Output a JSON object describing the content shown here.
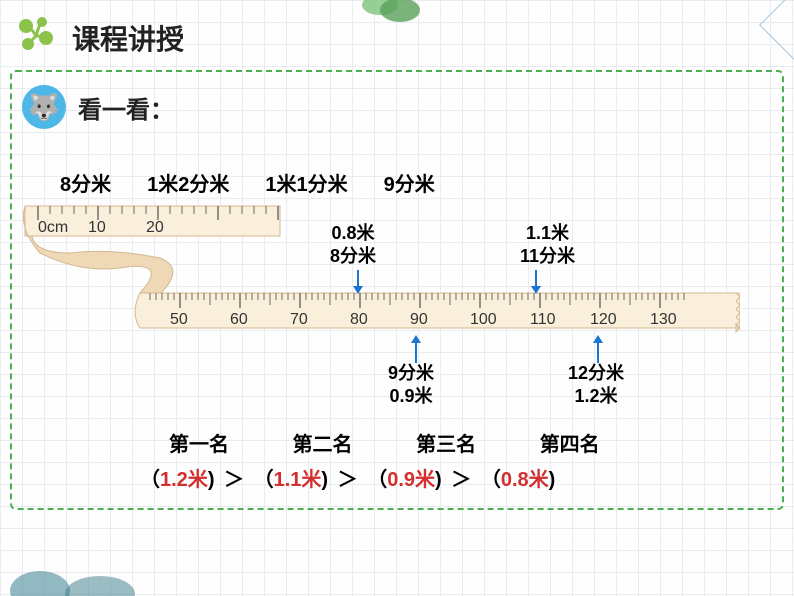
{
  "title": "课程讲授",
  "subtitle": "看一看：",
  "measurements": [
    "8分米",
    "1米2分米",
    "1米1分米",
    "9分米"
  ],
  "ruler": {
    "color": "#f0d4b0",
    "tick_labels_top": [
      "0cm",
      "10",
      "20"
    ],
    "tick_labels_bottom": [
      "50",
      "60",
      "70",
      "80",
      "90",
      "100",
      "110",
      "120",
      "130"
    ]
  },
  "arrows": {
    "top_left": {
      "line1": "0.8米",
      "line2": "8分米",
      "color": "#1976d2"
    },
    "top_right": {
      "line1": "1.1米",
      "line2": "11分米",
      "color": "#1976d2"
    },
    "bottom_left": {
      "line1": "9分米",
      "line2": "0.9米",
      "color": "#1976d2"
    },
    "bottom_right": {
      "line1": "12分米",
      "line2": "1.2米",
      "color": "#1976d2"
    }
  },
  "ranking": {
    "headers": [
      "第一名",
      "第二名",
      "第三名",
      "第四名"
    ],
    "values": [
      "1.2米",
      "1.1米",
      "0.9米",
      "0.8米"
    ],
    "gt": "＞"
  },
  "colors": {
    "red": "#d32f2f",
    "arrow": "#1976d2",
    "dashed_border": "#4caf50",
    "ruler_fill": "#f5e3c8",
    "ruler_stroke": "#c9a878"
  }
}
